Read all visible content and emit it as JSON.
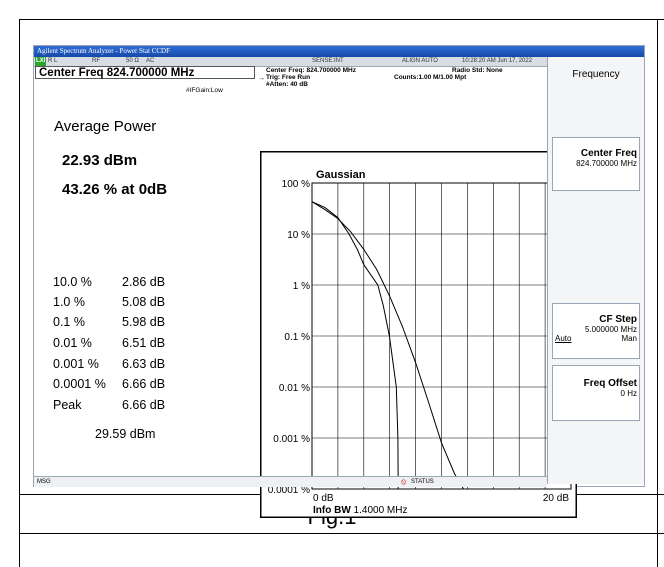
{
  "figure": {
    "caption": "Fig.1"
  },
  "window": {
    "title": "Agilent Spectrum Analyzer - Power Stat CCDF"
  },
  "status": {
    "lxi": "LXI",
    "rl": "R L",
    "rf": "RF",
    "impedance": "50 Ω",
    "coupling": "AC",
    "sense": "SENSE:INT",
    "align": "ALIGN AUTO",
    "datetime": "10:28:20 AM Jun 17, 2022"
  },
  "header": {
    "center_freq_label": "Center Freq 824.700000 MHz",
    "center_freq_small": "Center Freq: 824.700000 MHz",
    "trig": "Trig: Free Run",
    "counts": "Counts:1.00 M/1.00 Mpt",
    "radio_std": "Radio Std: None",
    "if_gain": "#IFGain:Low",
    "atten": "#Atten: 40 dB"
  },
  "results": {
    "average_power_label": "Average Power",
    "average_power_value": "22.93 dBm",
    "percent_at_0db": "43.26 % at 0dB",
    "rows": [
      {
        "label": "10.0 %",
        "value": "2.86 dB"
      },
      {
        "label": "1.0 %",
        "value": "5.08 dB"
      },
      {
        "label": "0.1 %",
        "value": "5.98 dB"
      },
      {
        "label": "0.01 %",
        "value": "6.51 dB"
      },
      {
        "label": "0.001 %",
        "value": "6.63 dB"
      },
      {
        "label": "0.0001 %",
        "value": "6.66 dB"
      },
      {
        "label": "Peak",
        "value": "6.66 dB"
      }
    ],
    "peak_dbm": "29.59 dBm"
  },
  "chart": {
    "title": "Gaussian",
    "y_ticks": [
      "100 %",
      "10 %",
      "1 %",
      "0.1 %",
      "0.01 %",
      "0.001 %",
      "0.0001 %"
    ],
    "x_left": "0 dB",
    "x_right": "20 dB",
    "info_bw_label": "Info BW",
    "info_bw_value": "1.4000 MHz"
  },
  "chart_data": {
    "type": "line",
    "title": "Gaussian",
    "xlim": [
      0,
      20
    ],
    "y_log": true,
    "ylim": [
      0.0001,
      100
    ],
    "grid": true,
    "series": [
      {
        "name": "Gaussian",
        "x": [
          0,
          1,
          2,
          3,
          4,
          5,
          6,
          7,
          8,
          9,
          10,
          11,
          11.7
        ],
        "y": [
          43,
          30,
          20,
          11,
          5,
          2,
          0.6,
          0.15,
          0.03,
          0.005,
          0.0008,
          0.0002,
          0.0001
        ]
      },
      {
        "name": "",
        "x": [
          0,
          1,
          2,
          2.86,
          3.5,
          4,
          5.08,
          5.5,
          5.98,
          6.51,
          6.63,
          6.66,
          6.66,
          11.7
        ],
        "y": [
          43,
          33,
          21,
          10,
          5,
          2.5,
          1,
          0.4,
          0.1,
          0.01,
          0.001,
          0.0001,
          0.0001,
          0.0001
        ]
      }
    ]
  },
  "softkeys": {
    "menu_title": "Frequency",
    "center_freq": {
      "label": "Center Freq",
      "value": "824.700000 MHz"
    },
    "cf_step": {
      "label": "CF Step",
      "value": "5.000000 MHz",
      "auto": "Auto",
      "man": "Man"
    },
    "freq_offset": {
      "label": "Freq Offset",
      "value": "0 Hz"
    }
  },
  "msgbar": {
    "msg": "MSG",
    "status": "STATUS"
  }
}
